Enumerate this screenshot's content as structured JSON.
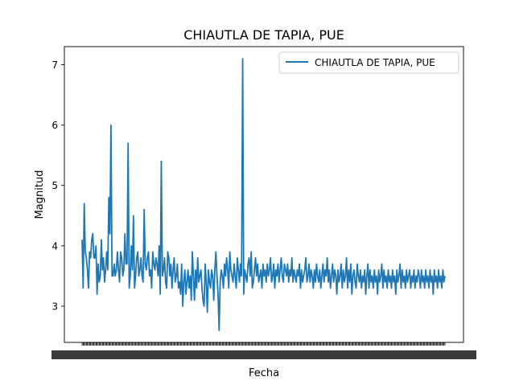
{
  "chart_data": {
    "type": "line",
    "title": "CHIAUTLA DE TAPIA, PUE",
    "xlabel": "Fecha",
    "ylabel": "Magnitud",
    "x_axis": "categorical",
    "x_tick_labels_legible": false,
    "ylim": [
      2.4,
      7.3
    ],
    "yticks": [
      3,
      4,
      5,
      6,
      7
    ],
    "grid": false,
    "legend": {
      "position": "upper-right",
      "entries": [
        "CHIAUTLA DE TAPIA, PUE"
      ]
    },
    "series": [
      {
        "name": "CHIAUTLA DE TAPIA, PUE",
        "color": "#1f77b4",
        "values": [
          4.1,
          3.3,
          4.7,
          3.9,
          3.8,
          3.6,
          3.3,
          3.9,
          3.8,
          4.1,
          4.2,
          3.8,
          3.8,
          4.0,
          3.2,
          3.7,
          3.4,
          3.5,
          4.1,
          3.6,
          3.8,
          3.4,
          3.6,
          3.9,
          3.6,
          4.8,
          4.2,
          6.0,
          3.5,
          3.5,
          3.7,
          3.5,
          3.6,
          3.9,
          3.6,
          3.4,
          3.9,
          3.8,
          3.5,
          3.6,
          4.2,
          3.7,
          3.7,
          5.7,
          3.3,
          3.5,
          4.0,
          3.6,
          4.5,
          3.3,
          3.5,
          3.8,
          3.9,
          3.5,
          3.6,
          3.8,
          3.5,
          3.4,
          4.6,
          3.7,
          3.6,
          3.8,
          3.9,
          3.5,
          3.6,
          3.3,
          3.9,
          3.7,
          3.6,
          3.8,
          3.7,
          3.5,
          4.0,
          3.2,
          5.4,
          3.5,
          3.6,
          3.8,
          3.4,
          3.3,
          3.9,
          3.8,
          3.5,
          3.7,
          3.3,
          3.6,
          3.8,
          3.4,
          3.5,
          3.7,
          3.3,
          3.4,
          3.2,
          3.7,
          3.0,
          3.4,
          3.6,
          3.2,
          3.4,
          3.6,
          3.3,
          3.5,
          3.1,
          3.9,
          3.5,
          3.1,
          3.6,
          3.3,
          3.8,
          3.4,
          3.5,
          3.6,
          3.3,
          3.1,
          3.0,
          3.7,
          3.4,
          2.9,
          3.6,
          3.4,
          3.3,
          3.6,
          3.5,
          3.1,
          3.6,
          3.9,
          3.5,
          3.2,
          2.6,
          3.4,
          3.6,
          3.5,
          3.3,
          3.7,
          3.5,
          3.8,
          3.6,
          3.3,
          3.9,
          3.6,
          3.5,
          3.4,
          3.7,
          3.5,
          3.3,
          3.8,
          3.6,
          3.4,
          3.7,
          3.5,
          7.1,
          3.2,
          3.6,
          3.5,
          3.4,
          3.7,
          3.8,
          3.5,
          3.9,
          3.3,
          3.4,
          3.6,
          3.8,
          3.5,
          3.7,
          3.4,
          3.5,
          3.6,
          3.3,
          3.7,
          3.5,
          3.6,
          3.4,
          3.7,
          3.5,
          3.6,
          3.8,
          3.4,
          3.5,
          3.7,
          3.3,
          3.6,
          3.5,
          3.7,
          3.4,
          3.6,
          3.8,
          3.5,
          3.4,
          3.7,
          3.6,
          3.5,
          3.7,
          3.4,
          3.6,
          3.5,
          3.8,
          3.4,
          3.6,
          3.5,
          3.4,
          3.6,
          3.5,
          3.7,
          3.3,
          3.6,
          3.4,
          3.5,
          3.6,
          3.8,
          3.4,
          3.5,
          3.7,
          3.4,
          3.6,
          3.5,
          3.3,
          3.6,
          3.4,
          3.7,
          3.5,
          3.4,
          3.6,
          3.3,
          3.5,
          3.7,
          3.4,
          3.6,
          3.5,
          3.8,
          3.4,
          3.6,
          3.3,
          3.5,
          3.7,
          3.4,
          3.6,
          3.5,
          3.2,
          3.6,
          3.4,
          3.5,
          3.7,
          3.3,
          3.6,
          3.4,
          3.5,
          3.8,
          3.3,
          3.6,
          3.4,
          3.7,
          3.2,
          3.5,
          3.6,
          3.4,
          3.3,
          3.7,
          3.5,
          3.4,
          3.6,
          3.3,
          3.5,
          3.4,
          3.6,
          3.2,
          3.5,
          3.7,
          3.3,
          3.6,
          3.4,
          3.5,
          3.3,
          3.6,
          3.4,
          3.5,
          3.2,
          3.6,
          3.4,
          3.5,
          3.7,
          3.3,
          3.6,
          3.4,
          3.5,
          3.3,
          3.6,
          3.4,
          3.5,
          3.3,
          3.6,
          3.4,
          3.5,
          3.2,
          3.6,
          3.4,
          3.5,
          3.7,
          3.3,
          3.6,
          3.4,
          3.5,
          3.3,
          3.6,
          3.4,
          3.5,
          3.6,
          3.3,
          3.5,
          3.4,
          3.6,
          3.3,
          3.5,
          3.4,
          3.6,
          3.5,
          3.3,
          3.6,
          3.4,
          3.5,
          3.3,
          3.6,
          3.4,
          3.5,
          3.3,
          3.6,
          3.4,
          3.5,
          3.2,
          3.6,
          3.4,
          3.5,
          3.3,
          3.6,
          3.4,
          3.5,
          3.3,
          3.6,
          3.4,
          3.5
        ]
      }
    ]
  }
}
